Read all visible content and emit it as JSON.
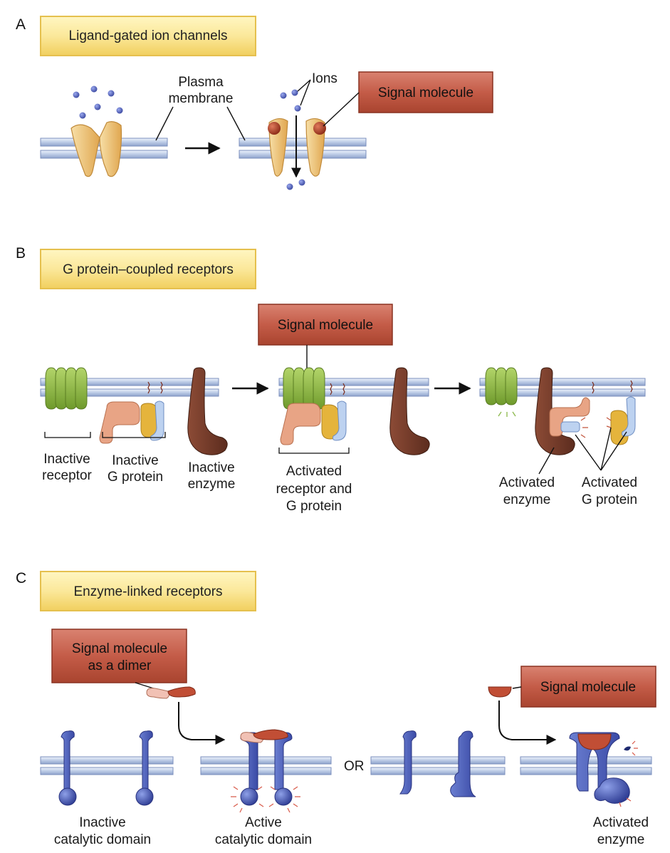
{
  "panels": {
    "a": {
      "letter": "A",
      "title": "Ligand-gated ion channels",
      "plasma_membrane": [
        "Plasma",
        "membrane"
      ],
      "ions": "Ions",
      "signal": "Signal molecule"
    },
    "b": {
      "letter": "B",
      "title": "G protein–coupled receptors",
      "signal": "Signal molecule",
      "inactive_receptor": [
        "Inactive",
        "receptor"
      ],
      "inactive_gprotein": [
        "Inactive",
        "G protein"
      ],
      "inactive_enzyme": [
        "Inactive",
        "enzyme"
      ],
      "activated_receptor": [
        "Activated",
        "receptor and",
        "G protein"
      ],
      "activated_enzyme": [
        "Activated",
        "enzyme"
      ],
      "activated_gprotein": [
        "Activated",
        "G protein"
      ]
    },
    "c": {
      "letter": "C",
      "title": "Enzyme-linked receptors",
      "signal_dimer": [
        "Signal molecule",
        "as a dimer"
      ],
      "signal": "Signal molecule",
      "or": "OR",
      "inactive_domain": [
        "Inactive",
        "catalytic domain"
      ],
      "active_domain": [
        "Active",
        "catalytic domain"
      ],
      "activated_enzyme": [
        "Activated",
        "enzyme"
      ]
    }
  }
}
